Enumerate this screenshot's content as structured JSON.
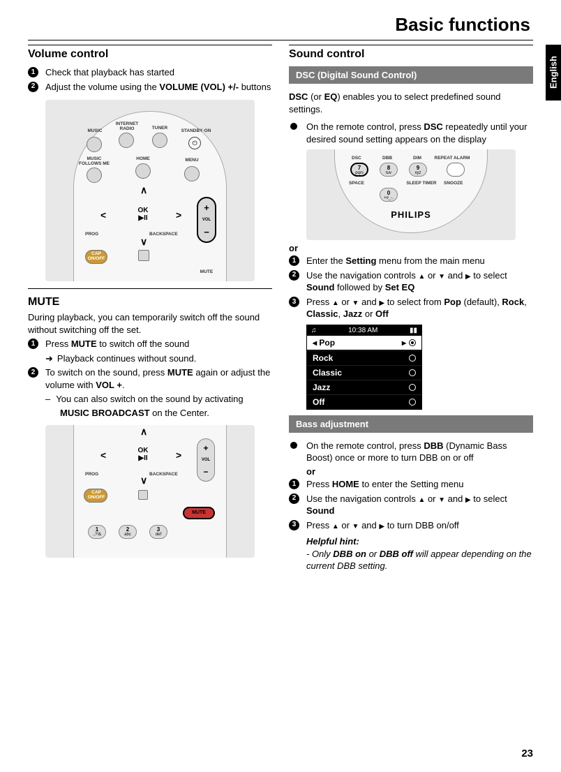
{
  "page": {
    "title": "Basic functions",
    "language_tab": "English",
    "page_number": "23"
  },
  "left": {
    "volume": {
      "heading": "Volume control",
      "steps": [
        {
          "n": "1",
          "html": "Check that playback has started"
        },
        {
          "n": "2",
          "html": "Adjust the volume using the <b>VOLUME (VOL) +/-</b> buttons"
        }
      ]
    },
    "remote1": {
      "top_labels": [
        "MUSIC",
        "INTERNET RADIO",
        "TUNER",
        "STANDBY·ON"
      ],
      "row2_labels": [
        "MUSIC FOLLOWS ME",
        "HOME",
        "MENU"
      ],
      "ok_label": "OK",
      "ok_play": "▶II",
      "prog": "PROG",
      "backspace": "BACKSPACE",
      "cap": "CAP ON/OFF",
      "vol_label": "VOL",
      "vol_plus": "+",
      "vol_minus": "−",
      "mute": "MUTE"
    },
    "mute": {
      "heading": "MUTE",
      "intro": "During playback, you can temporarily switch off the sound without switching off the set.",
      "steps": [
        {
          "n": "1",
          "html": "Press <b>MUTE</b> to switch off the sound"
        }
      ],
      "sub_arrow": "Playback continues without sound.",
      "steps2": [
        {
          "n": "2",
          "html": "To switch on the sound, press <b>MUTE</b> again or adjust the volume with <b>VOL +</b>."
        }
      ],
      "sub_dash": "You can also switch on the sound by activating",
      "sub_dash_cont": "<b>MUSIC BROADCAST</b> on the Center."
    },
    "remote2": {
      "ok_label": "OK",
      "ok_play": "▶II",
      "prog": "PROG",
      "backspace": "BACKSPACE",
      "cap": "CAP ON/OFF",
      "vol_label": "VOL",
      "mute": "MUTE",
      "num1": {
        "n": "1",
        "s": ".,?!&"
      },
      "num2": {
        "n": "2",
        "s": "abc"
      },
      "num3": {
        "n": "3",
        "s": "def"
      }
    }
  },
  "right": {
    "sound": {
      "heading": "Sound control"
    },
    "dsc_header": "DSC (Digital Sound Control)",
    "dsc_intro": "<b>DSC</b> (or <b>EQ</b>) enables you to select predefined sound settings.",
    "dsc_bullet": "On the remote control, press <b>DSC</b> repeatedly until your desired sound setting appears on the display",
    "philips_fig": {
      "labels": [
        "DSC",
        "DBB",
        "DIM",
        "REPEAT ALARM",
        "SPACE",
        "SLEEP TIMER",
        "SNOOZE"
      ],
      "nums": [
        {
          "n": "7",
          "s": "pqrs"
        },
        {
          "n": "8",
          "s": "tuv"
        },
        {
          "n": "9",
          "s": "xyz"
        },
        {
          "n": "0",
          "s": "+#_-."
        }
      ],
      "brand": "PHILIPS"
    },
    "or1": "or",
    "dsc_steps": [
      {
        "n": "1",
        "html": "Enter the <b>Setting</b> menu from the main menu"
      },
      {
        "n": "2",
        "html": "Use the navigation controls <span class='arrow-sym'>▲</span> or <span class='arrow-sym'>▼</span> and <span class='arrow-sym'>▶</span> to select <b>Sound</b> followed by <b>Set EQ</b>"
      },
      {
        "n": "3",
        "html": "Press <span class='arrow-sym'>▲</span> or <span class='arrow-sym'>▼</span> and <span class='arrow-sym'>▶</span> to select from <b>Pop</b> (default), <b>Rock</b>, <b>Classic</b>, <b>Jazz</b> or <b>Off</b>"
      }
    ],
    "lcd": {
      "time": "10:38 AM",
      "header": "Pop",
      "items": [
        "Rock",
        "Classic",
        "Jazz",
        "Off"
      ]
    },
    "bass_header": "Bass adjustment",
    "bass_bullet": "On the remote control, press <b>DBB</b> (Dynamic Bass Boost) once or more to turn DBB on or off",
    "or2": "or",
    "bass_steps": [
      {
        "n": "1",
        "html": "Press <b>HOME</b> to enter the Setting menu"
      },
      {
        "n": "2",
        "html": "Use the navigation controls <span class='arrow-sym'>▲</span> or <span class='arrow-sym'>▼</span> and <span class='arrow-sym'>▶</span> to select <b>Sound</b>"
      },
      {
        "n": "3",
        "html": "Press <span class='arrow-sym'>▲</span> or <span class='arrow-sym'>▼</span> and <span class='arrow-sym'>▶</span> to turn DBB on/off"
      }
    ],
    "hint": {
      "title": "Helpful hint:",
      "body": "- Only <b>DBB on</b> or <b>DBB off</b> will appear depending on the current DBB setting."
    }
  }
}
